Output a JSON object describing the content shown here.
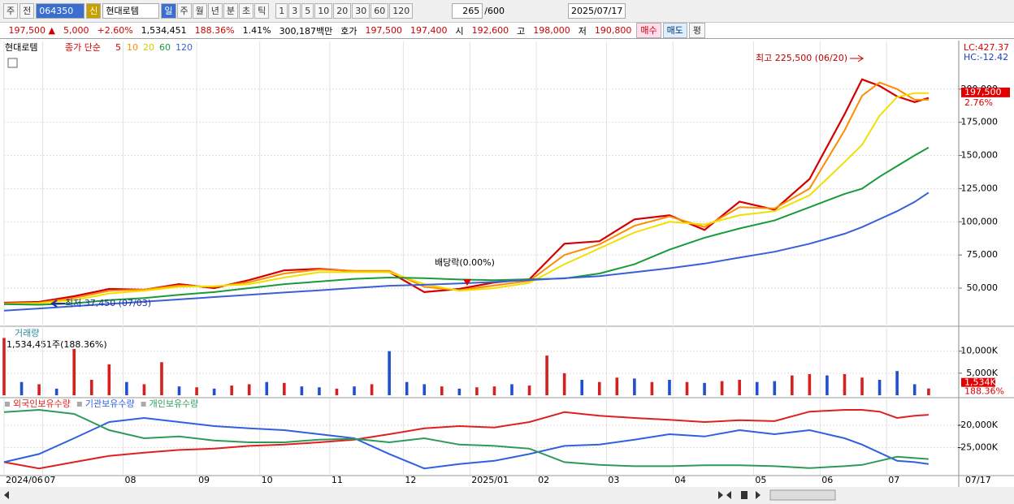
{
  "toolbar": {
    "view": "주",
    "mode": "전",
    "code": "064350",
    "badge": "신",
    "name": "현대로템",
    "periods": [
      "일",
      "주",
      "월",
      "년",
      "분",
      "초",
      "틱"
    ],
    "minutes": [
      "1",
      "3",
      "5",
      "10",
      "20",
      "30",
      "60",
      "120"
    ],
    "count": "265",
    "max": "/600",
    "date": "2025/07/17"
  },
  "info_bar": {
    "price": "197,500 ▲",
    "change": "5,000",
    "rate": "+2.60%",
    "volume": "1,534,451",
    "volume_ratio": "188.36%",
    "turnover": "1.41%",
    "amount": "300,187백만",
    "quote_label": "호가",
    "ask": "197,500",
    "bid": "197,400",
    "open_label": "시",
    "open": "192,600",
    "high_label": "고",
    "high": "198,000",
    "low_label": "저",
    "low": "190,800",
    "buy": "매수",
    "sell": "매도",
    "avg": "평"
  },
  "chart_data": [
    {
      "type": "line",
      "stock": "현대로템",
      "legend_label": "종가 단순",
      "grid": true,
      "x": [
        0,
        10,
        20,
        30,
        40,
        50,
        60,
        70,
        80,
        90,
        100,
        110,
        120,
        130,
        140,
        150,
        160,
        170,
        180,
        190,
        200,
        210,
        220,
        230,
        240,
        245,
        250,
        255,
        260,
        264
      ],
      "xlim": [
        0,
        272.6
      ],
      "ylim": [
        22500,
        233500
      ],
      "yticks": [
        {
          "value": 50000,
          "label": "50,000"
        },
        {
          "value": 75000,
          "label": "75,000"
        },
        {
          "value": 100000,
          "label": "100,000"
        },
        {
          "value": 125000,
          "label": "125,000"
        },
        {
          "value": 150000,
          "label": "150,000"
        },
        {
          "value": 175000,
          "label": "175,000"
        },
        {
          "value": 200000,
          "label": "200,000"
        }
      ],
      "series": [
        {
          "name": "5",
          "color": "#d40000",
          "values": [
            39000,
            39600,
            43900,
            49400,
            48800,
            53000,
            50000,
            56100,
            63400,
            64600,
            62800,
            62200,
            47000,
            49400,
            54300,
            56700,
            83500,
            85400,
            101800,
            104900,
            93900,
            115200,
            109100,
            132300,
            181100,
            207300,
            202400,
            194500,
            190200,
            193300
          ]
        },
        {
          "name": "10",
          "color": "#ff8c00",
          "values": [
            38500,
            39000,
            42500,
            48000,
            49000,
            52000,
            51000,
            54500,
            61000,
            64000,
            63000,
            63000,
            51000,
            48500,
            52000,
            55500,
            75000,
            83000,
            97000,
            104000,
            96000,
            111000,
            110000,
            125000,
            168900,
            195000,
            205000,
            200000,
            192000,
            192000
          ]
        },
        {
          "name": "20",
          "color": "#f0e000",
          "values": [
            38000,
            38500,
            41000,
            46000,
            48000,
            51000,
            51500,
            53000,
            58000,
            62000,
            62000,
            62000,
            53000,
            48000,
            50000,
            54000,
            68000,
            80000,
            92000,
            100000,
            98000,
            105000,
            108000,
            120000,
            145000,
            158000,
            180000,
            194000,
            197000,
            197000
          ]
        },
        {
          "name": "60",
          "color": "#1a9a3a",
          "values": [
            38000,
            37500,
            38500,
            41000,
            42500,
            45000,
            47000,
            50000,
            53000,
            55000,
            57000,
            58000,
            57500,
            56500,
            56000,
            56700,
            57300,
            61000,
            68000,
            79000,
            88000,
            95000,
            101000,
            111000,
            121000,
            125000,
            134000,
            142000,
            150000,
            156000
          ]
        },
        {
          "name": "120",
          "color": "#3a5fd8",
          "values": [
            33000,
            34700,
            36400,
            38100,
            39800,
            41500,
            43300,
            45000,
            46700,
            48400,
            50100,
            51800,
            52500,
            53500,
            54700,
            56100,
            57500,
            59100,
            62000,
            65000,
            68500,
            73000,
            77400,
            83500,
            91000,
            96000,
            102000,
            108000,
            115000,
            122000
          ]
        }
      ],
      "annotations": [
        "최고 225,500 (06/20)",
        "최저 37,450 (07/03)",
        "배당락(0.00%)"
      ],
      "lc": "LC:427.37",
      "hc": "HC:-12.42",
      "last_price": {
        "value": 197500,
        "label": "197,500"
      },
      "last_rate": "2.76%"
    },
    {
      "type": "bar",
      "title": "거래량",
      "note": "1,534,451주(188.36%)",
      "grid": true,
      "x": [
        0,
        5,
        10,
        15,
        20,
        25,
        30,
        35,
        40,
        45,
        50,
        55,
        60,
        65,
        70,
        75,
        80,
        85,
        90,
        95,
        100,
        105,
        110,
        115,
        120,
        125,
        130,
        135,
        140,
        145,
        150,
        155,
        160,
        165,
        170,
        175,
        180,
        185,
        190,
        195,
        200,
        205,
        210,
        215,
        220,
        225,
        230,
        235,
        240,
        245,
        250,
        255,
        260,
        264
      ],
      "xlim": [
        0,
        272.6
      ],
      "ylim": [
        0,
        15100
      ],
      "yticks": [
        {
          "value": 5000,
          "label": "5,000K"
        },
        {
          "value": 10000,
          "label": "10,000K"
        }
      ],
      "values": [
        13000,
        3000,
        2500,
        1500,
        10500,
        3500,
        7000,
        3000,
        2500,
        7500,
        2000,
        1800,
        1500,
        2200,
        2500,
        3000,
        2800,
        2000,
        1800,
        1500,
        2000,
        2500,
        10000,
        3000,
        2500,
        2000,
        1500,
        1800,
        2000,
        2500,
        2200,
        9000,
        5000,
        3500,
        3000,
        4000,
        3800,
        3000,
        3500,
        3000,
        2800,
        3200,
        3500,
        3000,
        3200,
        4500,
        4800,
        4500,
        4800,
        4000,
        3500,
        5500,
        2500,
        1534
      ],
      "bar_colors": [
        "#d62020",
        "#2050d0",
        "#d62020",
        "#2050d0",
        "#d62020",
        "#d62020",
        "#d62020",
        "#2050d0",
        "#d62020",
        "#d62020",
        "#2050d0",
        "#d62020",
        "#2050d0",
        "#d62020",
        "#d62020",
        "#2050d0",
        "#d62020",
        "#2050d0",
        "#2050d0",
        "#d62020",
        "#2050d0",
        "#d62020",
        "#2050d0",
        "#2050d0",
        "#2050d0",
        "#d62020",
        "#2050d0",
        "#d62020",
        "#d62020",
        "#2050d0",
        "#d62020",
        "#d62020",
        "#d62020",
        "#2050d0",
        "#d62020",
        "#d62020",
        "#2050d0",
        "#d62020",
        "#2050d0",
        "#d62020",
        "#2050d0",
        "#d62020",
        "#d62020",
        "#2050d0",
        "#2050d0",
        "#d62020",
        "#d62020",
        "#2050d0",
        "#d62020",
        "#d62020",
        "#2050d0",
        "#2050d0",
        "#2050d0",
        "#d62020"
      ],
      "last_label": "1,534K",
      "last_ratio": "188.36%"
    },
    {
      "type": "line",
      "grid": true,
      "x": [
        0,
        10,
        20,
        30,
        40,
        50,
        60,
        70,
        80,
        90,
        100,
        110,
        120,
        130,
        140,
        150,
        160,
        170,
        180,
        190,
        200,
        210,
        220,
        230,
        240,
        245,
        250,
        255,
        260,
        264
      ],
      "xlim": [
        0,
        272.6
      ],
      "ylim": [
        -31000,
        -14800
      ],
      "yticks": [
        {
          "value": -20000,
          "label": "-20,000K"
        },
        {
          "value": -25000,
          "label": "-25,000K"
        }
      ],
      "xticks": [
        {
          "value": 0,
          "label": "2024/06"
        },
        {
          "value": 11,
          "label": "07"
        },
        {
          "value": 34,
          "label": "08"
        },
        {
          "value": 55,
          "label": "09"
        },
        {
          "value": 73,
          "label": "10"
        },
        {
          "value": 93,
          "label": "11"
        },
        {
          "value": 114,
          "label": "12"
        },
        {
          "value": 133,
          "label": "2025/01"
        },
        {
          "value": 152,
          "label": "02"
        },
        {
          "value": 172,
          "label": "03"
        },
        {
          "value": 191,
          "label": "04"
        },
        {
          "value": 214,
          "label": "05"
        },
        {
          "value": 233,
          "label": "06"
        },
        {
          "value": 252,
          "label": "07"
        }
      ],
      "end_label": "07/17",
      "series": [
        {
          "name": "외국인보유수량",
          "color": "#e02020",
          "values": [
            -28200,
            -29600,
            -28200,
            -26800,
            -26100,
            -25500,
            -25200,
            -24600,
            -24300,
            -23800,
            -23200,
            -22000,
            -20700,
            -20200,
            -20500,
            -19300,
            -17100,
            -17900,
            -18400,
            -18800,
            -19300,
            -18900,
            -19100,
            -17000,
            -16600,
            -16600,
            -17000,
            -18400,
            -17900,
            -17700
          ]
        },
        {
          "name": "기관보유수량",
          "color": "#3060e0",
          "values": [
            -28200,
            -26400,
            -22900,
            -19300,
            -18400,
            -19300,
            -20200,
            -20700,
            -21100,
            -22000,
            -22900,
            -26400,
            -29600,
            -28600,
            -27900,
            -26400,
            -24600,
            -24300,
            -23200,
            -22000,
            -22500,
            -21100,
            -22000,
            -21100,
            -22900,
            -24300,
            -26100,
            -27900,
            -28200,
            -28600
          ]
        },
        {
          "name": "개인보유수량",
          "color": "#2e9a5a",
          "values": [
            -17100,
            -16600,
            -17500,
            -21100,
            -22900,
            -22500,
            -23400,
            -23800,
            -23800,
            -23200,
            -23000,
            -23800,
            -22900,
            -24300,
            -24600,
            -25200,
            -28200,
            -28800,
            -29100,
            -29100,
            -28900,
            -28900,
            -29100,
            -29500,
            -29100,
            -28800,
            -27900,
            -27000,
            -27300,
            -27500
          ]
        }
      ]
    }
  ]
}
